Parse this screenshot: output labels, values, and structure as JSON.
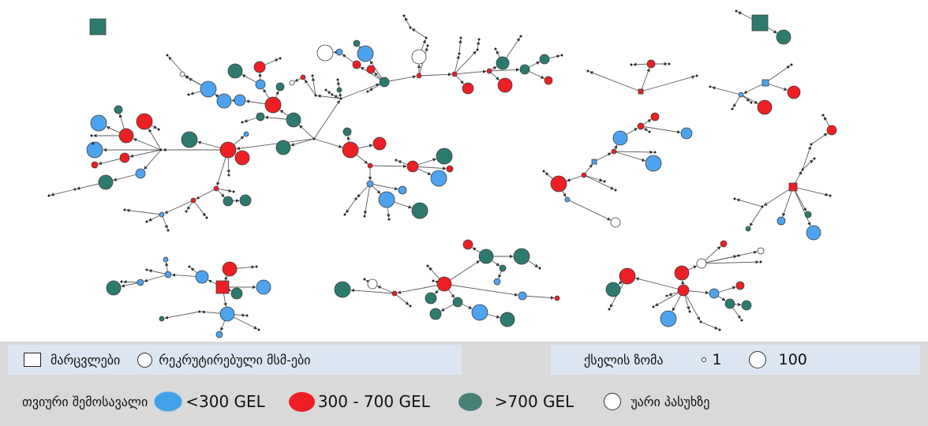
{
  "legend": {
    "shape_row": {
      "villages_label": "მარცვლები",
      "recruited_label": "რეკრუტირებული მსმ-ები"
    },
    "size_row": {
      "title": "ქსელის ზომა",
      "small_value": "1",
      "large_value": "100"
    },
    "income_row": {
      "title": "თვიური შემოსავალი",
      "categories": [
        {
          "label": "<300 GEL",
          "color": "#4ea3ef"
        },
        {
          "label": "300 - 700 GEL",
          "color": "#ee1f24"
        },
        {
          "label": ">700 GEL",
          "color": "#2d7b6f"
        },
        {
          "label": "უარი პასუხზე",
          "color": "#ffffff"
        }
      ]
    }
  },
  "network": {
    "node_types": [
      "seed-square",
      "recruited-circle"
    ],
    "income_colors": {
      "blue": "#4ea3ef",
      "red": "#ee1f24",
      "teal": "#2d7b6f",
      "white": "#ffffff"
    }
  }
}
